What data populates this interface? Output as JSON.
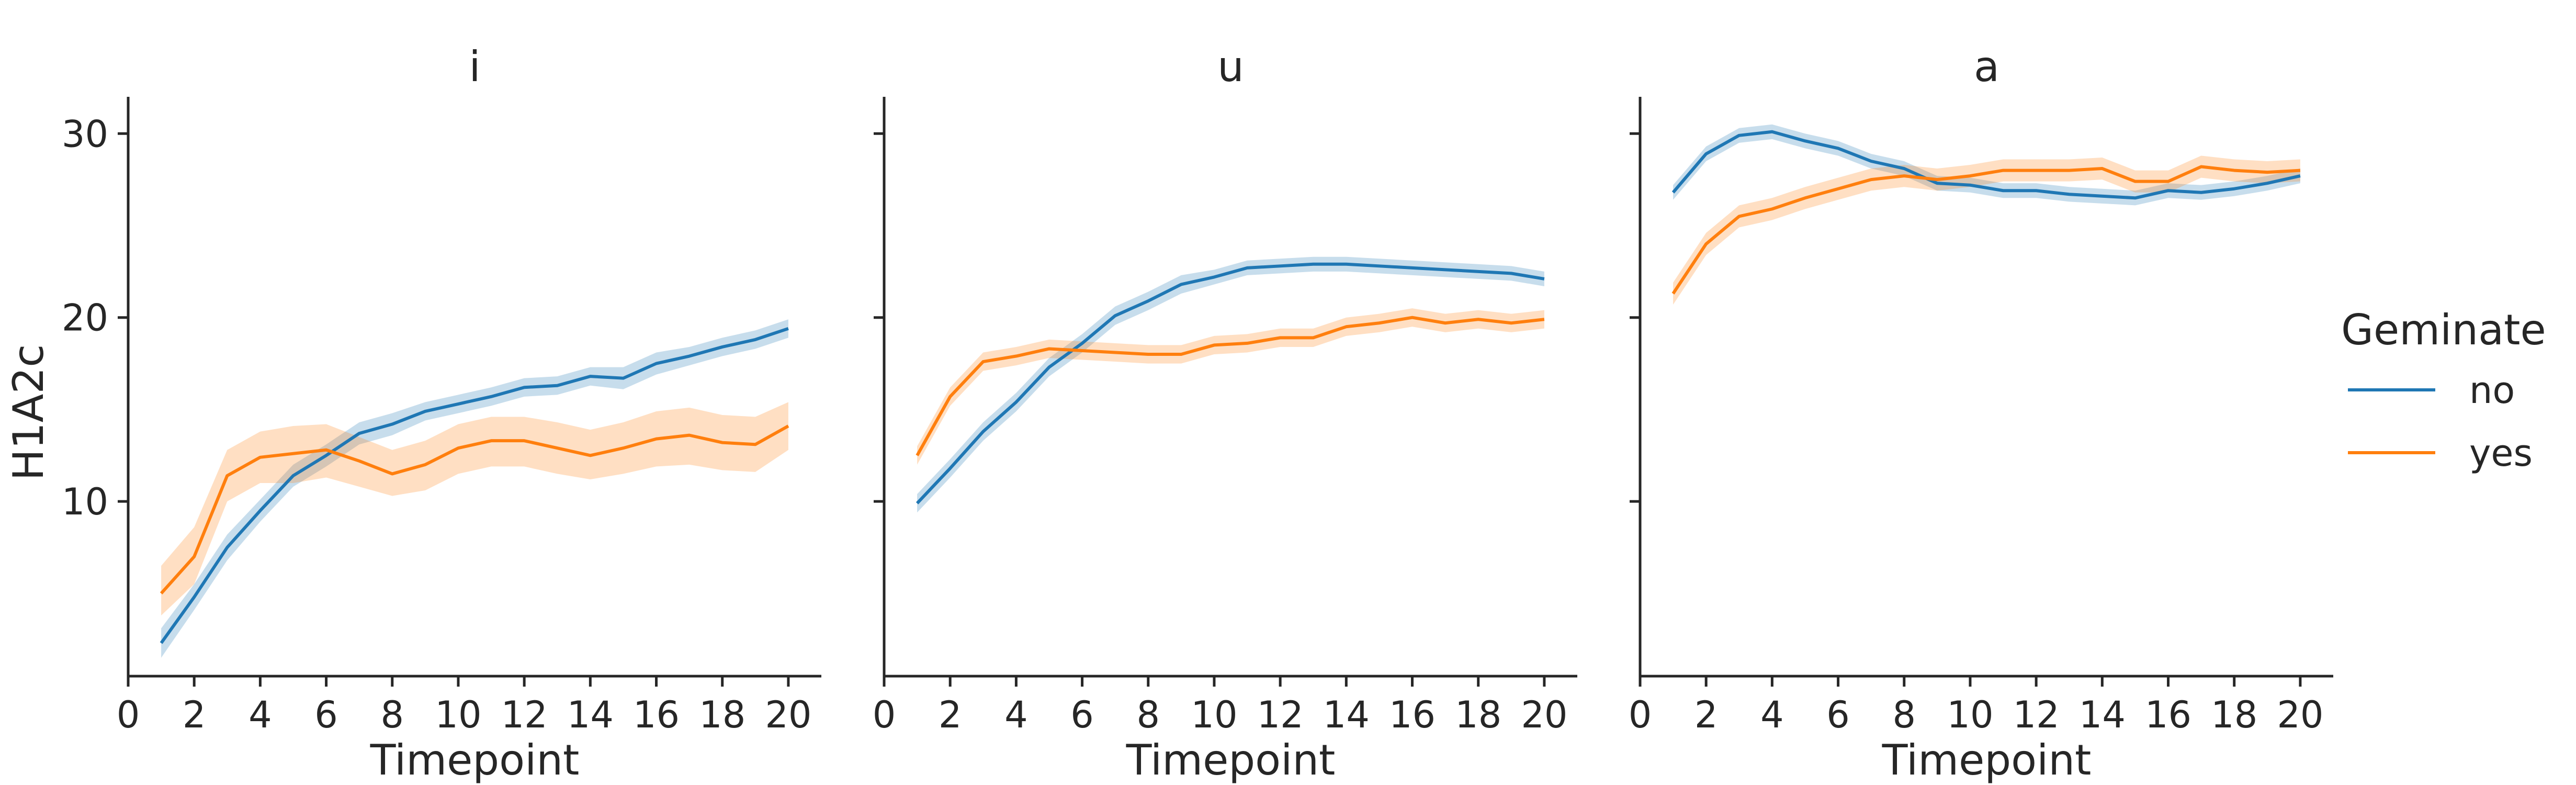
{
  "chart_data": {
    "type": "line",
    "ylabel": "H1A2c",
    "xlabel": "Timepoint",
    "xlim": [
      0,
      21
    ],
    "ylim": [
      0.5,
      32
    ],
    "xticks": [
      0,
      2,
      4,
      6,
      8,
      10,
      12,
      14,
      16,
      18,
      20
    ],
    "yticks": [
      10,
      20,
      30
    ],
    "legend": {
      "title": "Geminate",
      "position": "right",
      "entries": [
        "no",
        "yes"
      ]
    },
    "colors": {
      "no": "#1f77b4",
      "yes": "#ff7f0e"
    },
    "panels": [
      {
        "title": "i",
        "x": [
          1,
          2,
          3,
          4,
          5,
          6,
          7,
          8,
          9,
          10,
          11,
          12,
          13,
          14,
          15,
          16,
          17,
          18,
          19,
          20
        ],
        "series": [
          {
            "name": "no",
            "values": [
              2.3,
              4.8,
              7.5,
              9.5,
              11.4,
              12.5,
              13.7,
              14.2,
              14.9,
              15.3,
              15.7,
              16.2,
              16.3,
              16.8,
              16.7,
              17.5,
              17.9,
              18.4,
              18.8,
              19.4
            ],
            "lower": [
              1.5,
              4.1,
              6.8,
              8.9,
              10.8,
              11.9,
              13.1,
              13.6,
              14.4,
              14.8,
              15.2,
              15.7,
              15.8,
              16.3,
              16.1,
              16.9,
              17.4,
              17.9,
              18.3,
              18.9
            ],
            "upper": [
              3.1,
              5.5,
              8.2,
              10.1,
              12.0,
              13.1,
              14.3,
              14.8,
              15.4,
              15.8,
              16.2,
              16.7,
              16.8,
              17.3,
              17.3,
              18.1,
              18.4,
              18.9,
              19.3,
              19.9
            ]
          },
          {
            "name": "yes",
            "values": [
              5.0,
              7.0,
              11.4,
              12.4,
              12.6,
              12.8,
              12.2,
              11.5,
              12.0,
              12.9,
              13.3,
              13.3,
              12.9,
              12.5,
              12.9,
              13.4,
              13.6,
              13.2,
              13.1,
              14.1
            ],
            "lower": [
              3.8,
              5.5,
              10.0,
              11.0,
              11.0,
              11.3,
              10.8,
              10.3,
              10.6,
              11.5,
              11.9,
              11.9,
              11.5,
              11.2,
              11.5,
              11.9,
              12.0,
              11.7,
              11.6,
              12.8
            ],
            "upper": [
              6.5,
              8.6,
              12.8,
              13.8,
              14.1,
              14.2,
              13.5,
              12.8,
              13.3,
              14.2,
              14.6,
              14.6,
              14.3,
              13.9,
              14.3,
              14.9,
              15.1,
              14.7,
              14.6,
              15.4
            ]
          }
        ]
      },
      {
        "title": "u",
        "x": [
          1,
          2,
          3,
          4,
          5,
          6,
          7,
          8,
          9,
          10,
          11,
          12,
          13,
          14,
          15,
          16,
          17,
          18,
          19,
          20
        ],
        "series": [
          {
            "name": "no",
            "values": [
              9.9,
              11.8,
              13.8,
              15.4,
              17.3,
              18.6,
              20.1,
              20.9,
              21.8,
              22.2,
              22.7,
              22.8,
              22.9,
              22.9,
              22.8,
              22.7,
              22.6,
              22.5,
              22.4,
              22.1
            ],
            "lower": [
              9.4,
              11.3,
              13.3,
              14.9,
              16.8,
              18.1,
              19.6,
              20.4,
              21.3,
              21.8,
              22.3,
              22.4,
              22.5,
              22.5,
              22.4,
              22.3,
              22.2,
              22.1,
              22.0,
              21.7
            ],
            "upper": [
              10.4,
              12.3,
              14.3,
              15.9,
              17.8,
              19.1,
              20.6,
              21.4,
              22.3,
              22.6,
              23.1,
              23.2,
              23.3,
              23.3,
              23.2,
              23.1,
              23.0,
              22.9,
              22.8,
              22.5
            ]
          },
          {
            "name": "yes",
            "values": [
              12.5,
              15.7,
              17.6,
              17.9,
              18.3,
              18.2,
              18.1,
              18.0,
              18.0,
              18.5,
              18.6,
              18.9,
              18.9,
              19.5,
              19.7,
              20.0,
              19.7,
              19.9,
              19.7,
              19.9
            ],
            "lower": [
              12.0,
              15.2,
              17.1,
              17.4,
              17.8,
              17.7,
              17.6,
              17.5,
              17.5,
              18.0,
              18.1,
              18.4,
              18.4,
              19.0,
              19.2,
              19.5,
              19.2,
              19.4,
              19.2,
              19.4
            ],
            "upper": [
              13.0,
              16.2,
              18.1,
              18.4,
              18.8,
              18.7,
              18.6,
              18.5,
              18.5,
              19.0,
              19.1,
              19.4,
              19.4,
              20.0,
              20.2,
              20.5,
              20.2,
              20.4,
              20.2,
              20.4
            ]
          }
        ]
      },
      {
        "title": "a",
        "x": [
          1,
          2,
          3,
          4,
          5,
          6,
          7,
          8,
          9,
          10,
          11,
          12,
          13,
          14,
          15,
          16,
          17,
          18,
          19,
          20
        ],
        "series": [
          {
            "name": "no",
            "values": [
              26.8,
              28.9,
              29.9,
              30.1,
              29.6,
              29.2,
              28.5,
              28.1,
              27.3,
              27.2,
              26.9,
              26.9,
              26.7,
              26.6,
              26.5,
              26.9,
              26.8,
              27.0,
              27.3,
              27.7
            ],
            "lower": [
              26.4,
              28.5,
              29.5,
              29.7,
              29.2,
              28.8,
              28.1,
              27.7,
              26.9,
              26.8,
              26.5,
              26.5,
              26.3,
              26.2,
              26.1,
              26.5,
              26.4,
              26.6,
              26.9,
              27.3
            ],
            "upper": [
              27.2,
              29.3,
              30.3,
              30.5,
              30.0,
              29.6,
              28.9,
              28.5,
              27.7,
              27.6,
              27.3,
              27.3,
              27.1,
              27.0,
              26.9,
              27.3,
              27.2,
              27.4,
              27.7,
              28.1
            ]
          },
          {
            "name": "yes",
            "values": [
              21.3,
              24.0,
              25.5,
              25.9,
              26.5,
              27.0,
              27.5,
              27.7,
              27.5,
              27.7,
              28.0,
              28.0,
              28.0,
              28.1,
              27.4,
              27.4,
              28.2,
              28.0,
              27.9,
              28.0
            ],
            "lower": [
              20.7,
              23.4,
              24.9,
              25.3,
              25.9,
              26.4,
              26.9,
              27.1,
              26.9,
              27.1,
              27.4,
              27.4,
              27.4,
              27.5,
              26.8,
              26.8,
              27.6,
              27.4,
              27.3,
              27.4
            ],
            "upper": [
              21.9,
              24.6,
              26.1,
              26.5,
              27.1,
              27.6,
              28.1,
              28.3,
              28.1,
              28.3,
              28.6,
              28.6,
              28.6,
              28.7,
              28.0,
              28.0,
              28.8,
              28.6,
              28.5,
              28.6
            ]
          }
        ]
      }
    ]
  }
}
